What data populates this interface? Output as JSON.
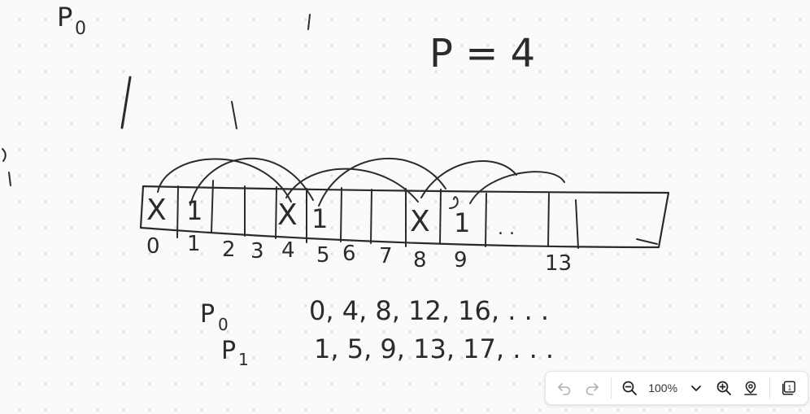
{
  "canvas": {
    "top_label": "P",
    "top_label_sub": "0",
    "p_equation": "P = 4",
    "cells": [
      {
        "mark": "X"
      },
      {
        "mark": "1"
      },
      {
        "mark": ""
      },
      {
        "mark": ""
      },
      {
        "mark": "X"
      },
      {
        "mark": "1"
      },
      {
        "mark": ""
      },
      {
        "mark": ""
      },
      {
        "mark": "X"
      },
      {
        "mark": "1"
      },
      {
        "mark": ". ."
      },
      {
        "mark": ""
      }
    ],
    "indices": [
      "0",
      "1",
      "2",
      "3",
      "4",
      "5",
      "6",
      "7",
      "8",
      "9",
      "13"
    ],
    "p0_label": "P",
    "p0_sub": "0",
    "p0_values": "0, 4, 8, 12, 16, . . .",
    "p1_label": "P",
    "p1_sub": "1",
    "p1_values": "1, 5, 9, 13, 17, . . ."
  },
  "toolbar": {
    "zoom_value": "100%",
    "page_badge": "1",
    "icons": {
      "undo": "undo-icon",
      "redo": "redo-icon",
      "zoom_out": "zoom-out-icon",
      "dropdown": "chevron-down-icon",
      "zoom_in": "zoom-in-icon",
      "locate": "locate-icon",
      "pages": "pages-icon"
    }
  }
}
